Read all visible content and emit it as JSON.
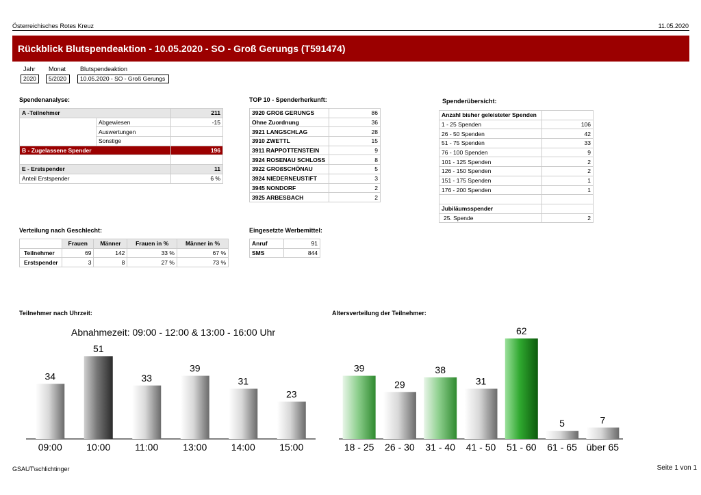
{
  "header": {
    "org": "Österreichisches Rotes Kreuz",
    "date": "11.05.2020"
  },
  "title": "Rückblick Blutspendeaktion - 10.05.2020 - SO - Groß Gerungs (T591474)",
  "filters": {
    "year_label": "Jahr",
    "month_label": "Monat",
    "event_label": "Blutspendeaktion",
    "year": "2020",
    "month": "5/2020",
    "event": "10.05.2020 - SO - Groß Gerungs"
  },
  "spendenanalyse": {
    "title": "Spendenanalyse:",
    "a_label": "A -Teilnehmer",
    "a_value": "211",
    "abgewiesen_label": "Abgewiesen",
    "abgewiesen_value": "-15",
    "auswertungen_label": "Auswertungen",
    "sonstige_label": "Sonstige",
    "b_label": "B - Zugelassene Spender",
    "b_value": "196",
    "e_label": "E - Erstspender",
    "e_value": "11",
    "anteil_label": "Anteil Erstspender",
    "anteil_value": "6 %"
  },
  "top10": {
    "title": "TOP 10 - Spenderherkunft:",
    "rows": [
      {
        "name": "3920 GROß GERUNGS",
        "value": "86"
      },
      {
        "name": "Ohne Zuordnung",
        "value": "36"
      },
      {
        "name": "3921 LANGSCHLAG",
        "value": "28"
      },
      {
        "name": "3910 ZWETTL",
        "value": "15"
      },
      {
        "name": "3911 RAPPOTTENSTEIN",
        "value": "9"
      },
      {
        "name": "3924 ROSENAU SCHLOSS",
        "value": "8"
      },
      {
        "name": "3922 GROßSCHÖNAU",
        "value": "5"
      },
      {
        "name": "3924 NIEDERNEUSTIFT",
        "value": "3"
      },
      {
        "name": "3945 NONDORF",
        "value": "2"
      },
      {
        "name": "3925 ARBESBACH",
        "value": "2"
      }
    ]
  },
  "uebersicht": {
    "title": "Spenderübersicht:",
    "head": "Anzahl bisher geleisteter Spenden",
    "rows": [
      {
        "label": "1 - 25 Spenden",
        "value": "106"
      },
      {
        "label": "26 - 50 Spenden",
        "value": "42"
      },
      {
        "label": "51 - 75 Spenden",
        "value": "33"
      },
      {
        "label": "76 - 100 Spenden",
        "value": "9"
      },
      {
        "label": "101 - 125 Spenden",
        "value": "2"
      },
      {
        "label": "126 - 150 Spenden",
        "value": "2"
      },
      {
        "label": "151 - 175 Spenden",
        "value": "1"
      },
      {
        "label": "176 - 200 Spenden",
        "value": "1"
      }
    ],
    "jubi_head": "Jubiläumsspender",
    "jubi_label": "25. Spende",
    "jubi_value": "2"
  },
  "geschlecht": {
    "title": "Verteilung nach Geschlecht:",
    "cols": [
      "Frauen",
      "Männer",
      "Frauen in %",
      "Männer in %"
    ],
    "rows": [
      {
        "label": "Teilnehmer",
        "values": [
          "69",
          "142",
          "33 %",
          "67 %"
        ]
      },
      {
        "label": "Erstspender",
        "values": [
          "3",
          "8",
          "27 %",
          "73 %"
        ]
      }
    ]
  },
  "werbemittel": {
    "title": "Eingesetzte Werbemittel:",
    "rows": [
      {
        "label": "Anruf",
        "value": "91"
      },
      {
        "label": "SMS",
        "value": "844"
      }
    ]
  },
  "charts": {
    "uhrzeit_title": "Teilnehmer nach Uhrzeit:",
    "alter_title": "Altersverteilung der Teilnehmer:"
  },
  "chart_data": [
    {
      "type": "bar",
      "title": "Abnahmezeit: 09:00 - 12:00 & 13:00 - 16:00 Uhr",
      "categories": [
        "09:00",
        "10:00",
        "11:00",
        "13:00",
        "14:00",
        "15:00"
      ],
      "values": [
        34,
        51,
        33,
        39,
        31,
        23
      ],
      "colors": [
        "gray",
        "dark",
        "gray",
        "gray",
        "gray",
        "gray"
      ],
      "ylim": [
        0,
        65
      ]
    },
    {
      "type": "bar",
      "title": "",
      "categories": [
        "18 - 25",
        "26 - 30",
        "31 - 40",
        "41 - 50",
        "51 - 60",
        "61 - 65",
        "über 65"
      ],
      "values": [
        39,
        29,
        38,
        31,
        62,
        5,
        7
      ],
      "colors": [
        "lightgreen",
        "gray",
        "lightgreen",
        "gray",
        "green",
        "gray",
        "gray"
      ],
      "ylim": [
        0,
        65
      ]
    }
  ],
  "footer": {
    "user": "GSAUT\\schlichtinger",
    "page": "Seite 1 von 1"
  }
}
